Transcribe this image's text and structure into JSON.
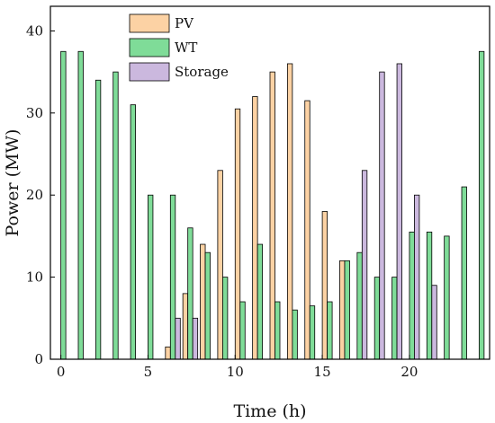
{
  "chart_data": {
    "type": "bar",
    "xlabel": "Time (h)",
    "ylabel": "Power (MW)",
    "xlim": [
      -0.6,
      24.6
    ],
    "ylim": [
      0,
      43
    ],
    "xticks": [
      0,
      5,
      10,
      15,
      20
    ],
    "yticks": [
      0,
      10,
      20,
      30,
      40
    ],
    "legend_position": "top-left",
    "series": [
      {
        "name": "PV",
        "color": "#fcd2a4",
        "points": [
          [
            6,
            1.5
          ],
          [
            7,
            8
          ],
          [
            8,
            14
          ],
          [
            9,
            23
          ],
          [
            10,
            30.5
          ],
          [
            11,
            32
          ],
          [
            12,
            35
          ],
          [
            13,
            36
          ],
          [
            14,
            31.5
          ],
          [
            15,
            18
          ],
          [
            16,
            12
          ]
        ]
      },
      {
        "name": "WT",
        "color": "#7fdc98",
        "points": [
          [
            0,
            37.5
          ],
          [
            1,
            37.5
          ],
          [
            2,
            34
          ],
          [
            3,
            35
          ],
          [
            4,
            31
          ],
          [
            5,
            20
          ],
          [
            6,
            20
          ],
          [
            7,
            16
          ],
          [
            8,
            13
          ],
          [
            9,
            10
          ],
          [
            10,
            7
          ],
          [
            11,
            14
          ],
          [
            12,
            7
          ],
          [
            13,
            6
          ],
          [
            14,
            6.5
          ],
          [
            15,
            7
          ],
          [
            16,
            12
          ],
          [
            17,
            13
          ],
          [
            18,
            10
          ],
          [
            19,
            10
          ],
          [
            20,
            15.5
          ],
          [
            21,
            15.5
          ],
          [
            22,
            15
          ],
          [
            23,
            21
          ],
          [
            24,
            37.5
          ]
        ]
      },
      {
        "name": "Storage",
        "color": "#cbb8de",
        "points": [
          [
            6,
            5
          ],
          [
            7,
            5
          ],
          [
            17,
            23
          ],
          [
            18,
            35
          ],
          [
            19,
            36
          ],
          [
            20,
            20
          ],
          [
            21,
            9
          ]
        ]
      }
    ]
  }
}
